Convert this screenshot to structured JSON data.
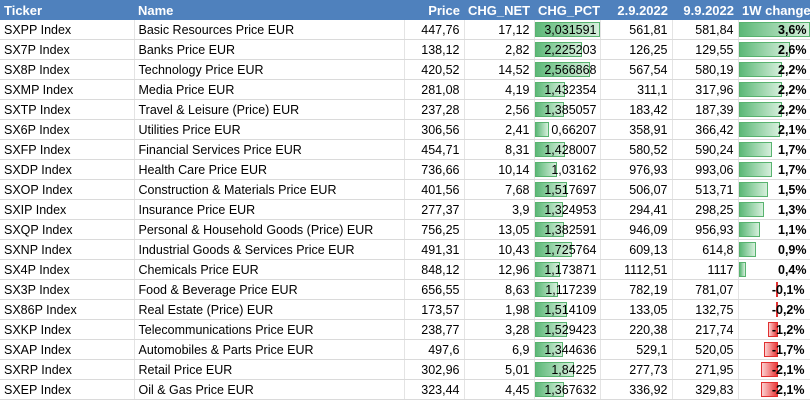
{
  "headers": {
    "ticker": "Ticker",
    "name": "Name",
    "price": "Price",
    "chg_net": "CHG_NET",
    "chg_pct": "CHG_PCT",
    "d1": "2.9.2022",
    "d2": "9.9.2022",
    "change": "1W change"
  },
  "colors": {
    "header_bg": "#4f81bd",
    "positive_bar": "#63be7b",
    "negative_bar": "#f8696b"
  },
  "rows": [
    {
      "ticker": "SXPP Index",
      "name": "Basic Resources Price EUR",
      "price": "447,76",
      "chg_net": "17,12",
      "chg_pct": "3,031591",
      "d1": "561,81",
      "d2": "581,84",
      "change": "3,6%",
      "change_value": 3.6,
      "pct_value": 3.031591
    },
    {
      "ticker": "SX7P Index",
      "name": "Banks Price EUR",
      "price": "138,12",
      "chg_net": "2,82",
      "chg_pct": "2,225203",
      "d1": "126,25",
      "d2": "129,55",
      "change": "2,6%",
      "change_value": 2.6,
      "pct_value": 2.225203
    },
    {
      "ticker": "SX8P Index",
      "name": "Technology Price EUR",
      "price": "420,52",
      "chg_net": "14,52",
      "chg_pct": "2,566868",
      "d1": "567,54",
      "d2": "580,19",
      "change": "2,2%",
      "change_value": 2.2,
      "pct_value": 2.566868
    },
    {
      "ticker": "SXMP Index",
      "name": "Media Price EUR",
      "price": "281,08",
      "chg_net": "4,19",
      "chg_pct": "1,432354",
      "d1": "311,1",
      "d2": "317,96",
      "change": "2,2%",
      "change_value": 2.2,
      "pct_value": 1.432354
    },
    {
      "ticker": "SXTP Index",
      "name": "Travel & Leisure (Price) EUR",
      "price": "237,28",
      "chg_net": "2,56",
      "chg_pct": "1,385057",
      "d1": "183,42",
      "d2": "187,39",
      "change": "2,2%",
      "change_value": 2.2,
      "pct_value": 1.385057
    },
    {
      "ticker": "SX6P Index",
      "name": "Utilities Price EUR",
      "price": "306,56",
      "chg_net": "2,41",
      "chg_pct": "0,66207",
      "d1": "358,91",
      "d2": "366,42",
      "change": "2,1%",
      "change_value": 2.1,
      "pct_value": 0.66207
    },
    {
      "ticker": "SXFP Index",
      "name": "Financial Services Price EUR",
      "price": "454,71",
      "chg_net": "8,31",
      "chg_pct": "1,428007",
      "d1": "580,52",
      "d2": "590,24",
      "change": "1,7%",
      "change_value": 1.7,
      "pct_value": 1.428007
    },
    {
      "ticker": "SXDP Index",
      "name": "Health Care Price EUR",
      "price": "736,66",
      "chg_net": "10,14",
      "chg_pct": "1,03162",
      "d1": "976,93",
      "d2": "993,06",
      "change": "1,7%",
      "change_value": 1.7,
      "pct_value": 1.03162
    },
    {
      "ticker": "SXOP Index",
      "name": "Construction & Materials Price EUR",
      "price": "401,56",
      "chg_net": "7,68",
      "chg_pct": "1,517697",
      "d1": "506,07",
      "d2": "513,71",
      "change": "1,5%",
      "change_value": 1.5,
      "pct_value": 1.517697
    },
    {
      "ticker": "SXIP Index",
      "name": "Insurance Price EUR",
      "price": "277,37",
      "chg_net": "3,9",
      "chg_pct": "1,324953",
      "d1": "294,41",
      "d2": "298,25",
      "change": "1,3%",
      "change_value": 1.3,
      "pct_value": 1.324953
    },
    {
      "ticker": "SXQP Index",
      "name": "Personal & Household Goods (Price) EUR",
      "price": "756,25",
      "chg_net": "13,05",
      "chg_pct": "1,382591",
      "d1": "946,09",
      "d2": "956,93",
      "change": "1,1%",
      "change_value": 1.1,
      "pct_value": 1.382591
    },
    {
      "ticker": "SXNP Index",
      "name": "Industrial Goods & Services Price EUR",
      "price": "491,31",
      "chg_net": "10,43",
      "chg_pct": "1,725764",
      "d1": "609,13",
      "d2": "614,8",
      "change": "0,9%",
      "change_value": 0.9,
      "pct_value": 1.725764
    },
    {
      "ticker": "SX4P Index",
      "name": "Chemicals Price EUR",
      "price": "848,12",
      "chg_net": "12,96",
      "chg_pct": "1,173871",
      "d1": "1112,51",
      "d2": "1117",
      "change": "0,4%",
      "change_value": 0.4,
      "pct_value": 1.173871
    },
    {
      "ticker": "SX3P Index",
      "name": "Food & Beverage Price EUR",
      "price": "656,55",
      "chg_net": "8,63",
      "chg_pct": "1,117239",
      "d1": "782,19",
      "d2": "781,07",
      "change": "-0,1%",
      "change_value": -0.1,
      "pct_value": 1.117239
    },
    {
      "ticker": "SX86P Index",
      "name": "Real Estate (Price) EUR",
      "price": "173,57",
      "chg_net": "1,98",
      "chg_pct": "1,514109",
      "d1": "133,05",
      "d2": "132,75",
      "change": "-0,2%",
      "change_value": -0.2,
      "pct_value": 1.514109
    },
    {
      "ticker": "SXKP Index",
      "name": "Telecommunications Price EUR",
      "price": "238,77",
      "chg_net": "3,28",
      "chg_pct": "1,529423",
      "d1": "220,38",
      "d2": "217,74",
      "change": "-1,2%",
      "change_value": -1.2,
      "pct_value": 1.529423
    },
    {
      "ticker": "SXAP Index",
      "name": "Automobiles & Parts Price EUR",
      "price": "497,6",
      "chg_net": "6,9",
      "chg_pct": "1,344636",
      "d1": "529,1",
      "d2": "520,05",
      "change": "-1,7%",
      "change_value": -1.7,
      "pct_value": 1.344636
    },
    {
      "ticker": "SXRP Index",
      "name": "Retail Price EUR",
      "price": "302,96",
      "chg_net": "5,01",
      "chg_pct": "1,84225",
      "d1": "277,73",
      "d2": "271,95",
      "change": "-2,1%",
      "change_value": -2.1,
      "pct_value": 1.84225
    },
    {
      "ticker": "SXEP Index",
      "name": "Oil & Gas Price EUR",
      "price": "323,44",
      "chg_net": "4,45",
      "chg_pct": "1,367632",
      "d1": "336,92",
      "d2": "329,83",
      "change": "-2,1%",
      "change_value": -2.1,
      "pct_value": 1.367632
    }
  ]
}
